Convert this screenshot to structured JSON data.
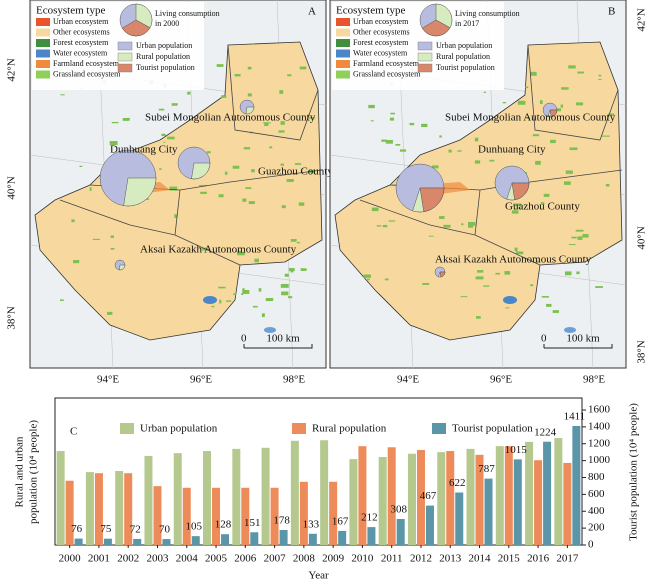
{
  "maps": [
    {
      "panel": "A",
      "legend_title": "Ecosystem type",
      "ecosystems": [
        "Urban ecosystem",
        "Other ecosystems",
        "Forest ecosystem",
        "Water ecosystem",
        "Farmland ecosystem",
        "Grassland ecosystem"
      ],
      "pie_title": "Living consumption in 2000",
      "pie_legend": [
        "Urban population",
        "Rural population",
        "Tourist population"
      ],
      "counties": [
        "Subei Mongolian Autonomous County",
        "Dunhuang City",
        "Guazhou County",
        "Aksai Kazakh Autonomous County"
      ],
      "scale": [
        "0",
        "100 km"
      ],
      "lon_labels": [
        "94°E",
        "96°E",
        "98°E"
      ],
      "lat_labels": [
        "42°N",
        "40°N",
        "38°N"
      ]
    },
    {
      "panel": "B",
      "legend_title": "Ecosystem type",
      "ecosystems": [
        "Urban ecosystem",
        "Other ecosystems",
        "Forest ecosystem",
        "Water ecosystem",
        "Farmland ecosystem",
        "Grassland ecosystem"
      ],
      "pie_title": "Living consumption in 2017",
      "pie_legend": [
        "Urban population",
        "Rural population",
        "Tourist population"
      ],
      "counties": [
        "Subei Mongolian Autonomous County",
        "Dunhuang City",
        "Guazhou County",
        "Aksai Kazakh Autonomous County"
      ],
      "scale": [
        "0",
        "100 km"
      ],
      "lon_labels": [
        "94°E",
        "96°E",
        "98°E"
      ],
      "lat_labels": [
        "42°N",
        "40°N",
        "38°N"
      ]
    }
  ],
  "chart_data": {
    "type": "bar",
    "panel": "C",
    "x_label": "Year",
    "y_label": [
      "Rural and urban",
      "population (10⁴ people)"
    ],
    "y2_label": "Tourist population (10⁴ people)",
    "categories": [
      "2000",
      "2001",
      "2002",
      "2003",
      "2004",
      "2005",
      "2006",
      "2007",
      "2008",
      "2009",
      "2010",
      "2011",
      "2012",
      "2013",
      "2014",
      "2015",
      "2016",
      "2017"
    ],
    "series": [
      {
        "name": "Urban population",
        "color": "#b5c98e",
        "values": [
          17.4,
          13.5,
          13.7,
          16.5,
          17,
          17.4,
          17.8,
          18,
          19.3,
          19.4,
          15.9,
          16.3,
          16.9,
          17.2,
          17.8,
          18.3,
          19.1,
          19.8
        ]
      },
      {
        "name": "Rural population",
        "color": "#ee8b5a",
        "values": [
          11.9,
          13.3,
          13.3,
          10.9,
          10.6,
          10.6,
          10.6,
          10.6,
          11.7,
          11.7,
          18.3,
          18.1,
          17.6,
          17.4,
          16.7,
          18.3,
          15.7,
          15.2
        ]
      },
      {
        "name": "Tourist population",
        "color": "#5b95a8",
        "axis": "y2",
        "values": [
          76,
          75,
          72,
          70,
          105,
          128,
          151,
          178,
          133,
          167,
          212,
          308,
          467,
          622,
          787,
          1015,
          1224,
          1411
        ]
      }
    ],
    "ylim": [
      0,
      25
    ],
    "y2lim": [
      0,
      1600
    ],
    "y2ticks": [
      0,
      200,
      400,
      600,
      800,
      1000,
      1200,
      1400,
      1600
    ]
  }
}
